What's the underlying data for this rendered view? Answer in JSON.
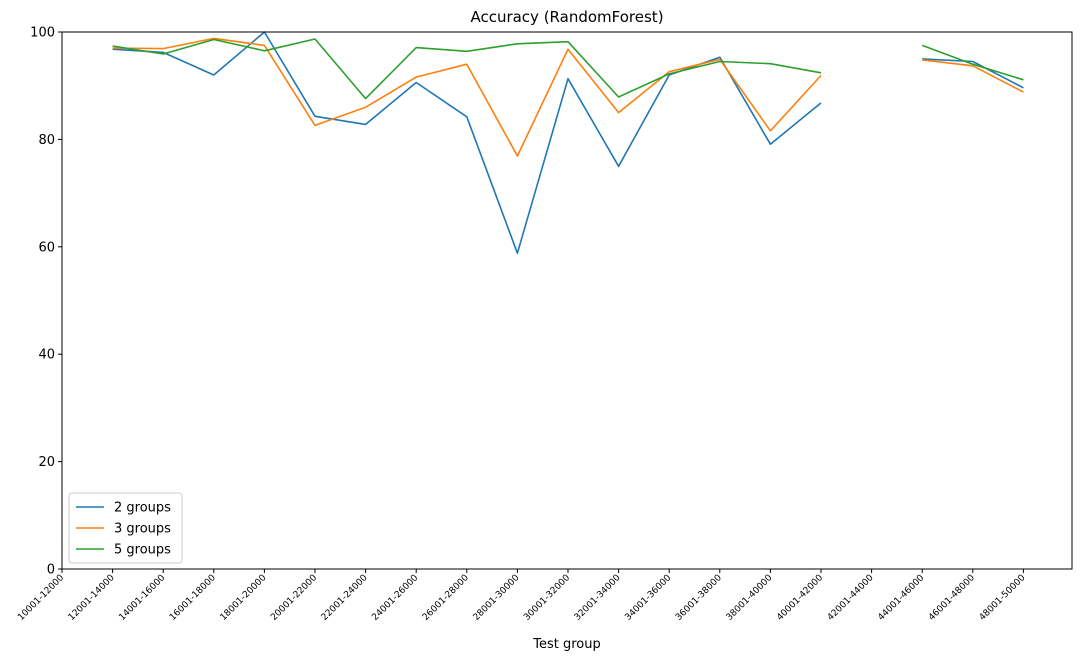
{
  "chart_data": {
    "type": "line",
    "title": "Accuracy (RandomForest)",
    "xlabel": "Test group",
    "ylabel": "",
    "ylim": [
      0,
      100
    ],
    "yticks": [
      0,
      20,
      40,
      60,
      80,
      100
    ],
    "grid": false,
    "legend_position": "lower-left",
    "categories": [
      "10001-12000",
      "12001-14000",
      "14001-16000",
      "16001-18000",
      "18001-20000",
      "20001-22000",
      "22001-24000",
      "24001-26000",
      "26001-28000",
      "28001-30000",
      "30001-32000",
      "32001-34000",
      "34001-36000",
      "36001-38000",
      "38001-40000",
      "40001-42000",
      "42001-44000",
      "44001-46000",
      "46001-48000",
      "48001-50000"
    ],
    "series": [
      {
        "name": "2 groups",
        "color": "#1f77b4",
        "values": [
          null,
          96.8,
          96.2,
          92.0,
          100.0,
          84.3,
          82.8,
          90.6,
          84.2,
          58.8,
          91.3,
          75.0,
          92.0,
          95.3,
          79.1,
          86.8,
          null,
          95.0,
          94.5,
          89.6
        ]
      },
      {
        "name": "3 groups",
        "color": "#ff7f0e",
        "values": [
          null,
          97.0,
          96.9,
          98.8,
          97.5,
          82.6,
          86.0,
          91.6,
          94.0,
          76.9,
          96.8,
          85.0,
          92.6,
          94.9,
          81.6,
          91.9,
          null,
          94.8,
          93.7,
          88.8
        ]
      },
      {
        "name": "5 groups",
        "color": "#2ca02c",
        "values": [
          null,
          97.4,
          95.9,
          98.6,
          96.5,
          98.7,
          87.6,
          97.1,
          96.4,
          97.8,
          98.2,
          87.9,
          92.2,
          94.5,
          94.1,
          92.4,
          null,
          97.5,
          94.0,
          91.1
        ]
      }
    ]
  }
}
